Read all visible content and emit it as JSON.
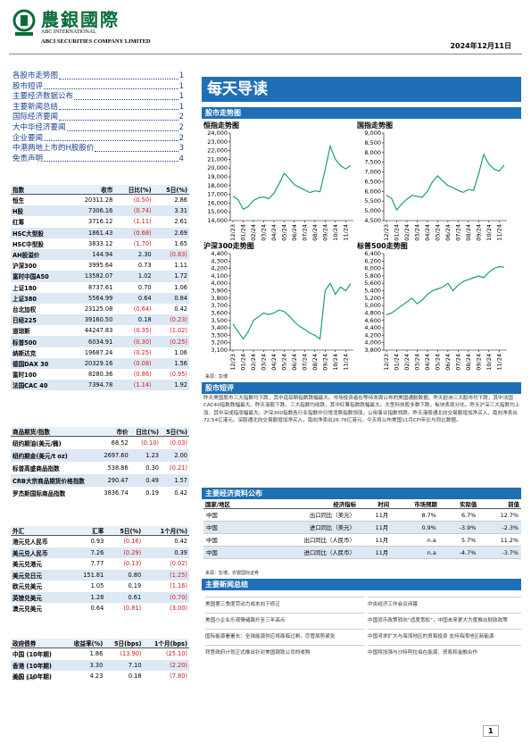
{
  "header": {
    "name": "農銀國際",
    "en1": "ABC INTERNATIONAL",
    "en2": "ABCI SECURITIES COMPANY LIMITED",
    "date": "2024年12月11日"
  },
  "toc": [
    {
      "title": "各股市走势图",
      "page": "1"
    },
    {
      "title": "股市短评",
      "page": "1"
    },
    {
      "title": "主要经济数据公布",
      "page": "1"
    },
    {
      "title": "主要新闻总结",
      "page": "1"
    },
    {
      "title": "国际经济要闻",
      "page": "2"
    },
    {
      "title": "大中华经济要闻",
      "page": "2"
    },
    {
      "title": "企业要闻",
      "page": "2"
    },
    {
      "title": "中港两地上市的H股股价",
      "page": "3"
    },
    {
      "title": "免责声明",
      "page": "4"
    }
  ],
  "indices": {
    "columns": [
      "指数",
      "收市",
      "日比(%)",
      "5日(%)"
    ],
    "rows": [
      [
        "恒生",
        "20311.28",
        "(0.50)",
        "2.86"
      ],
      [
        "H股",
        "7306.16",
        "(0.74)",
        "3.31"
      ],
      [
        "红筹",
        "3716.12",
        "(1.11)",
        "2.61"
      ],
      [
        "HSC大型股",
        "1861.43",
        "(0.68)",
        "2.69"
      ],
      [
        "HSC中型股",
        "3833.12",
        "(1.70)",
        "1.65"
      ],
      [
        "AH股溢价",
        "144.94",
        "2.30",
        "(0.83)"
      ],
      [
        "沪深300",
        "3995.64",
        "0.73",
        "1.11"
      ],
      [
        "富时中国A50",
        "13582.07",
        "1.02",
        "1.72"
      ],
      [
        "上证180",
        "8737.61",
        "0.70",
        "1.06"
      ],
      [
        "上证380",
        "5564.99",
        "0.64",
        "0.84"
      ],
      [
        "台北加权",
        "23125.08",
        "(0.64)",
        "0.42"
      ],
      [
        "日经225",
        "39160.50",
        "0.18",
        "(0.23)"
      ],
      [
        "道琼斯",
        "44247.83",
        "(0.35)",
        "(1.02)"
      ],
      [
        "标普500",
        "6034.91",
        "(0.30)",
        "(0.25)"
      ],
      [
        "纳斯达克",
        "19687.24",
        "(0.25)",
        "1.06"
      ],
      [
        "德国DAX 30",
        "20329.16",
        "(0.08)",
        "1.56"
      ],
      [
        "富时100",
        "8280.36",
        "(0.86)",
        "(0.95)"
      ],
      [
        "法国CAC 40",
        "7394.78",
        "(1.14)",
        "1.92"
      ]
    ]
  },
  "commodities": {
    "columns": [
      "商品期货/指数",
      "市价",
      "日比(%)",
      "5日(%)"
    ],
    "rows": [
      [
        "纽约期油(美元/桶)",
        "68.52",
        "(0.10)",
        "(0.03)"
      ],
      [
        "纽约期金(美元/t oz)",
        "2697.60",
        "1.23",
        "2.00"
      ],
      [
        "标普高盛商品指数",
        "538.86",
        "0.30",
        "(0.21)"
      ],
      [
        "CRB大宗商品期货价格指数",
        "290.47",
        "0.49",
        "1.57"
      ],
      [
        "罗杰斯国际商品指数",
        "3836.74",
        "0.19",
        "0.42"
      ]
    ]
  },
  "fx": {
    "columns": [
      "外汇",
      "汇率",
      "5日(%)",
      "1个月(%)"
    ],
    "rows": [
      [
        "港元兑人民币",
        "0.93",
        "(0.16)",
        "0.42"
      ],
      [
        "美元兑人民币",
        "7.26",
        "(0.29)",
        "0.39"
      ],
      [
        "美元兑港元",
        "7.77",
        "(0.13)",
        "(0.02)"
      ],
      [
        "美元兑日元",
        "151.81",
        "0.80",
        "(1.25)"
      ],
      [
        "欧元兑美元",
        "1.05",
        "0.19",
        "(1.16)"
      ],
      [
        "英镑兑美元",
        "1.28",
        "0.61",
        "(0.70)"
      ],
      [
        "澳元兑美元",
        "0.64",
        "(0.81)",
        "(3.00)"
      ]
    ]
  },
  "bonds": {
    "columns": [
      "政府债券",
      "收益率(%)",
      "5日(bps)",
      "1个月(bps)"
    ],
    "rows": [
      [
        "中国 (10年期)",
        "1.86",
        "(13.90)",
        "(25.10)"
      ],
      [
        "香港 (10年期)",
        "3.30",
        "7.10",
        "(2.20)"
      ],
      [
        "美国 (10年期)",
        "4.23",
        "0.18",
        "(7.80)"
      ]
    ],
    "source": "来源：彭博"
  },
  "title": "每天导读",
  "charts_heading": "股市走势图",
  "charts": [
    {
      "type": "line",
      "title": "恒指走势图",
      "color": "#1a9e77",
      "categories": [
        "12/23",
        null,
        "01/24",
        null,
        "02/24",
        null,
        "03/24",
        null,
        "04/24",
        null,
        "05/24",
        null,
        "06/24",
        null,
        "07/24",
        null,
        "08/24",
        null,
        "09/24",
        null,
        "10/24",
        null,
        "11/24",
        null
      ],
      "values": [
        16800,
        16400,
        15300,
        15600,
        16300,
        16600,
        16700,
        16500,
        17100,
        18200,
        19400,
        18800,
        18100,
        17800,
        17500,
        17200,
        17400,
        17300,
        19800,
        22500,
        21000,
        20300,
        19900,
        20300
      ],
      "ylim": [
        14000,
        24000
      ],
      "yticks": [
        {
          "value": 14000,
          "label": "14,000"
        },
        {
          "value": 15000,
          "label": "15,000"
        },
        {
          "value": 16000,
          "label": "16,000"
        },
        {
          "value": 17000,
          "label": "17,000"
        },
        {
          "value": 18000,
          "label": "18,000"
        },
        {
          "value": 19000,
          "label": "19,000"
        },
        {
          "value": 20000,
          "label": "20,000"
        },
        {
          "value": 21000,
          "label": "21,000"
        },
        {
          "value": 22000,
          "label": "22,000"
        },
        {
          "value": 23000,
          "label": "23,000"
        },
        {
          "value": 24000,
          "label": "24,000"
        }
      ]
    },
    {
      "type": "line",
      "title": "国指走势图",
      "color": "#1a9e77",
      "categories": [
        "12/23",
        null,
        "01/24",
        null,
        "02/24",
        null,
        "03/24",
        null,
        "04/24",
        null,
        "05/24",
        null,
        "06/24",
        null,
        "07/24",
        null,
        "08/24",
        null,
        "09/24",
        null,
        "10/24",
        null,
        "11/24",
        null
      ],
      "values": [
        5800,
        5650,
        5050,
        5350,
        5600,
        5800,
        5750,
        5700,
        6000,
        6500,
        6800,
        6550,
        6300,
        6200,
        6050,
        5950,
        6100,
        6050,
        6900,
        7900,
        7400,
        7150,
        7050,
        7350
      ],
      "ylim": [
        4500,
        9000
      ],
      "yticks": [
        {
          "value": 4500,
          "label": "4,500"
        },
        {
          "value": 5000,
          "label": "5,000"
        },
        {
          "value": 5500,
          "label": "5,500"
        },
        {
          "value": 6000,
          "label": "6,000"
        },
        {
          "value": 6500,
          "label": "6,500"
        },
        {
          "value": 7000,
          "label": "7,000"
        },
        {
          "value": 7500,
          "label": "7,500"
        },
        {
          "value": 8000,
          "label": "8,000"
        },
        {
          "value": 8500,
          "label": "8,500"
        },
        {
          "value": 9000,
          "label": "9,000"
        }
      ]
    },
    {
      "type": "line",
      "title": "沪深300走势图",
      "color": "#1a9e77",
      "categories": [
        "12/23",
        null,
        "01/24",
        null,
        "02/24",
        null,
        "03/24",
        null,
        "04/24",
        null,
        "05/24",
        null,
        "06/24",
        null,
        "07/24",
        null,
        "08/24",
        null,
        "09/24",
        null,
        "10/24",
        null,
        "11/24",
        null
      ],
      "values": [
        3450,
        3350,
        3250,
        3350,
        3500,
        3550,
        3600,
        3580,
        3600,
        3640,
        3620,
        3560,
        3480,
        3420,
        3380,
        3330,
        3300,
        3250,
        3900,
        4000,
        3850,
        3950,
        3900,
        3995
      ],
      "ylim": [
        3100,
        4400
      ],
      "yticks": [
        {
          "value": 3100,
          "label": "3,100"
        },
        {
          "value": 3200,
          "label": "3,200"
        },
        {
          "value": 3300,
          "label": "3,300"
        },
        {
          "value": 3400,
          "label": "3,400"
        },
        {
          "value": 3500,
          "label": "3,500"
        },
        {
          "value": 3600,
          "label": "3,600"
        },
        {
          "value": 3700,
          "label": "3,700"
        },
        {
          "value": 3800,
          "label": "3,800"
        },
        {
          "value": 3900,
          "label": "3,900"
        },
        {
          "value": 4000,
          "label": "4,000"
        },
        {
          "value": 4100,
          "label": "4,100"
        },
        {
          "value": 4200,
          "label": "4,200"
        },
        {
          "value": 4300,
          "label": "4,300"
        },
        {
          "value": 4400,
          "label": "4,400"
        }
      ]
    },
    {
      "type": "line",
      "title": "标普500走势图",
      "color": "#1a9e77",
      "categories": [
        "12/23",
        null,
        "01/24",
        null,
        "02/24",
        null,
        "03/24",
        null,
        "04/24",
        null,
        "05/24",
        null,
        "06/24",
        null,
        "07/24",
        null,
        "08/24",
        null,
        "09/24",
        null,
        "10/24",
        null,
        "11/24",
        null
      ],
      "values": [
        4750,
        4800,
        4900,
        5000,
        5100,
        5200,
        5050,
        5150,
        5300,
        5400,
        5450,
        5500,
        5600,
        5400,
        5550,
        5650,
        5700,
        5750,
        5800,
        5750,
        5900,
        6000,
        6050,
        6035
      ],
      "ylim": [
        3800,
        6400
      ],
      "yticks": [
        {
          "value": 3800,
          "label": "3,800"
        },
        {
          "value": 4000,
          "label": "4,000"
        },
        {
          "value": 4200,
          "label": "4,200"
        },
        {
          "value": 4400,
          "label": "4,400"
        },
        {
          "value": 4600,
          "label": "4,600"
        },
        {
          "value": 4800,
          "label": "4,800"
        },
        {
          "value": 5000,
          "label": "5,000"
        },
        {
          "value": 5200,
          "label": "5,200"
        },
        {
          "value": 5400,
          "label": "5,400"
        },
        {
          "value": 5600,
          "label": "5,600"
        },
        {
          "value": 5800,
          "label": "5,800"
        },
        {
          "value": 6000,
          "label": "6,000"
        },
        {
          "value": 6200,
          "label": "6,200"
        },
        {
          "value": 6400,
          "label": "6,400"
        }
      ]
    }
  ],
  "charts_source": "来源：彭博",
  "commentary": {
    "heading": "股市短评",
    "text": "昨天美国股市三大指数均下跌，其中道琼斯指数跌幅最大。市场投资者在等待本周公布的美国通胀数据。昨天欧洲三大股市均下跌，其中法国CAC40指数跌幅最大。昨天港股下跌，三大指数均收跌，其中红筹指数跌幅最大。大型科技股多数下跌，板块表现分化。昨天沪深三大指数均上涨，其中深成指涨幅最大。沪深300指数各行业指数中日常消费指数领涨，公用事业指数领跌。昨天港股通北向交易额增加净买入，南向净卖出72.54亿港元。深股通北向交易额增加净买入，南向净卖出26.76亿港元。今天将公布美国11月CPI年比与同比数据。"
  },
  "economic": {
    "heading": "主要经济资料公布",
    "columns": [
      "国家/地区",
      "经济指标",
      "时间",
      "市场预期",
      "实际值",
      "前值"
    ],
    "rows": [
      [
        "中国",
        "出口同比（美元）",
        "11月",
        "8.7%",
        "6.7%",
        "12.7%"
      ],
      [
        "中国",
        "进口同比（美元）",
        "11月",
        "0.9%",
        "-3.9%",
        "-2.3%"
      ],
      [
        "中国",
        "出口同比（人民币）",
        "11月",
        "n.a",
        "5.7%",
        "11.2%"
      ],
      [
        "中国",
        "进口同比（人民币）",
        "11月",
        "n.a",
        "-4.7%",
        "-3.7%"
      ]
    ],
    "source": "来源：彭博，农银国际证券"
  },
  "news": {
    "heading": "主要新闻总结",
    "left": [
      "美国第三季度劳动力成本向下修正",
      "美国小企业乐观情绪飙升至三年高点",
      "国际能源署署长：全球能源供应将面临过剩，尽管局势紧张",
      "拜登政府计划正式推出针对美国钢铁公司的收购"
    ],
    "right": [
      "中央经济工作会议闭幕",
      "中国货币政策转向“适度宽松”，中国未来更大力度推出财政政策",
      "中国寻求扩大与海湾地区的贸易投资 支持海湾地区新能源",
      "中国将加强与沙特阿拉伯在能源、贸易和金融合作"
    ]
  },
  "page_number": "1"
}
